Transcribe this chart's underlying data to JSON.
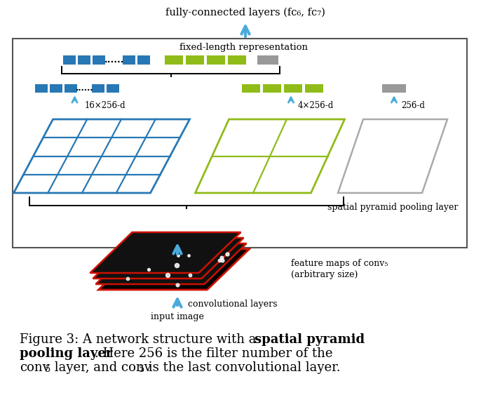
{
  "fig_width": 6.96,
  "fig_height": 5.63,
  "dpi": 100,
  "bg_color": "#ffffff",
  "blue_color": "#2878b5",
  "green_color": "#8fbc19",
  "gray_color": "#999999",
  "arrow_color": "#4aabdb",
  "title_text": "fully-connected layers (fc₆, fc₇)",
  "fixed_repr_text": "fixed-length representation",
  "spp_layer_text": "spatial pyramid pooling layer",
  "label_16": "16×256-d",
  "label_4": "4×256-d",
  "label_1": "256-d",
  "feat_map_text1": "feature maps of conv₅",
  "feat_map_text2": "(arbitrary size)",
  "conv_layers_text": "convolutional layers",
  "input_image_text": "input image"
}
